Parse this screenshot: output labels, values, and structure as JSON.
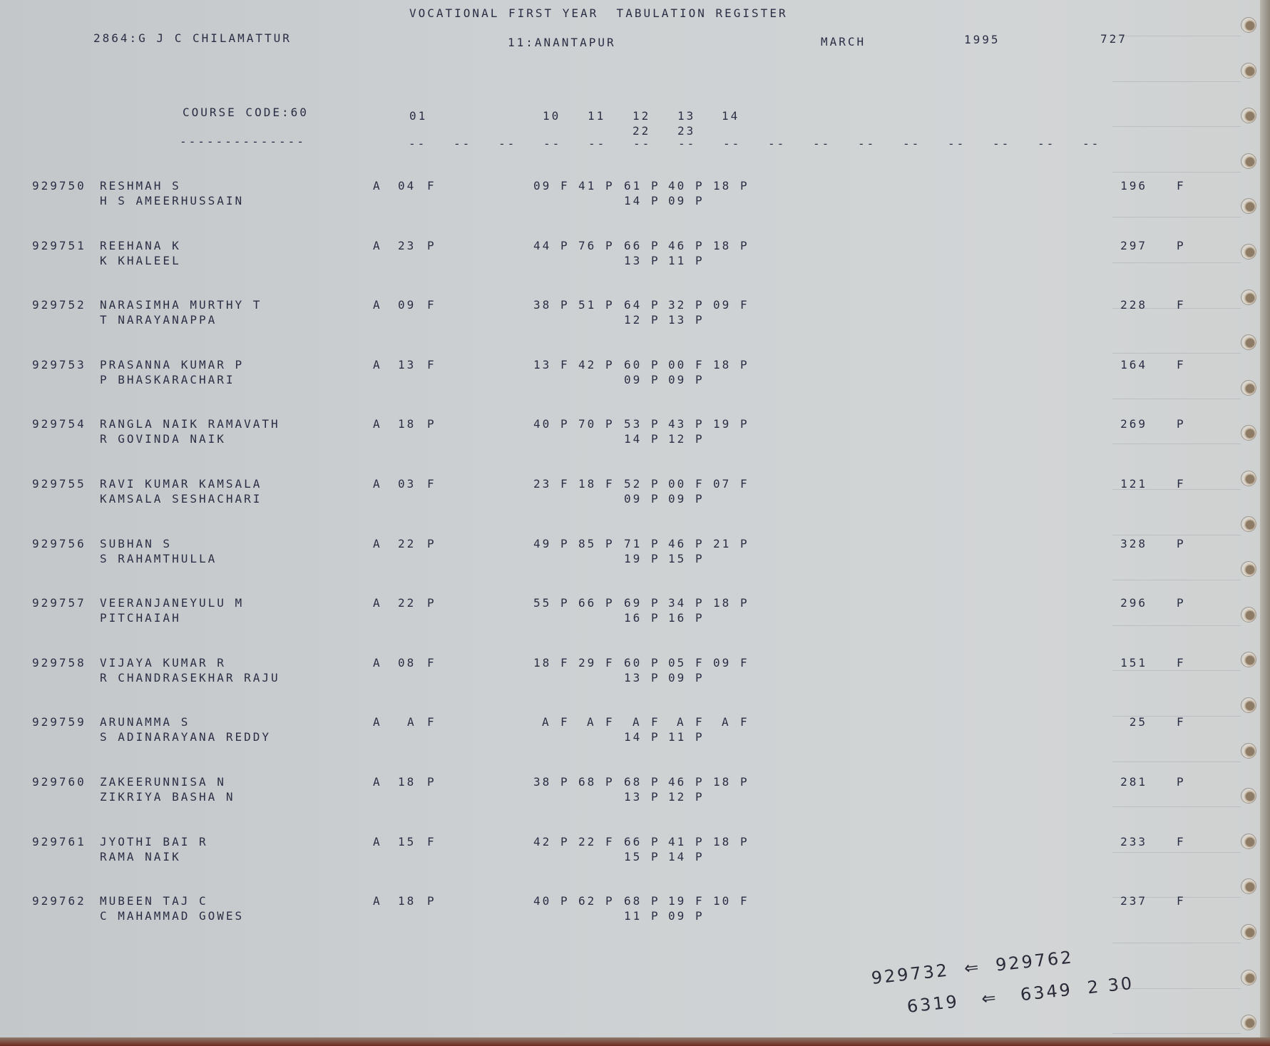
{
  "header": {
    "title": "VOCATIONAL FIRST YEAR  TABULATION REGISTER",
    "college": "2864:G J C CHILAMATTUR",
    "district": "11:ANANTAPUR",
    "month": "MARCH",
    "year": "1995",
    "page": "727"
  },
  "columns": {
    "course_code": "COURSE CODE:60",
    "underline": "--------------",
    "codes": [
      "01",
      "10",
      "11",
      "12",
      "13",
      "14"
    ],
    "codes_second_line": [
      "22",
      "23"
    ],
    "dash": "--"
  },
  "rows": [
    {
      "id": "929750",
      "name": "RESHMAH S",
      "guardian": "H S AMEERHUSSAIN",
      "part": "A",
      "s01": [
        "04",
        "F"
      ],
      "subjects": [
        [
          "09",
          "F"
        ],
        [
          "41",
          "P"
        ],
        [
          "61",
          "P"
        ],
        [
          "40",
          "P"
        ],
        [
          "18",
          "P"
        ]
      ],
      "sub2": [
        [
          "14",
          "P"
        ],
        [
          "09",
          "P"
        ]
      ],
      "total": "196",
      "result": "F"
    },
    {
      "id": "929751",
      "name": "REEHANA K",
      "guardian": "K KHALEEL",
      "part": "A",
      "s01": [
        "23",
        "P"
      ],
      "subjects": [
        [
          "44",
          "P"
        ],
        [
          "76",
          "P"
        ],
        [
          "66",
          "P"
        ],
        [
          "46",
          "P"
        ],
        [
          "18",
          "P"
        ]
      ],
      "sub2": [
        [
          "13",
          "P"
        ],
        [
          "11",
          "P"
        ]
      ],
      "total": "297",
      "result": "P"
    },
    {
      "id": "929752",
      "name": "NARASIMHA MURTHY T",
      "guardian": "T NARAYANAPPA",
      "part": "A",
      "s01": [
        "09",
        "F"
      ],
      "subjects": [
        [
          "38",
          "P"
        ],
        [
          "51",
          "P"
        ],
        [
          "64",
          "P"
        ],
        [
          "32",
          "P"
        ],
        [
          "09",
          "F"
        ]
      ],
      "sub2": [
        [
          "12",
          "P"
        ],
        [
          "13",
          "P"
        ]
      ],
      "total": "228",
      "result": "F"
    },
    {
      "id": "929753",
      "name": "PRASANNA KUMAR P",
      "guardian": "P BHASKARACHARI",
      "part": "A",
      "s01": [
        "13",
        "F"
      ],
      "subjects": [
        [
          "13",
          "F"
        ],
        [
          "42",
          "P"
        ],
        [
          "60",
          "P"
        ],
        [
          "00",
          "F"
        ],
        [
          "18",
          "P"
        ]
      ],
      "sub2": [
        [
          "09",
          "P"
        ],
        [
          "09",
          "P"
        ]
      ],
      "total": "164",
      "result": "F"
    },
    {
      "id": "929754",
      "name": "RANGLA NAIK RAMAVATH",
      "guardian": "R GOVINDA NAIK",
      "part": "A",
      "s01": [
        "18",
        "P"
      ],
      "subjects": [
        [
          "40",
          "P"
        ],
        [
          "70",
          "P"
        ],
        [
          "53",
          "P"
        ],
        [
          "43",
          "P"
        ],
        [
          "19",
          "P"
        ]
      ],
      "sub2": [
        [
          "14",
          "P"
        ],
        [
          "12",
          "P"
        ]
      ],
      "total": "269",
      "result": "P"
    },
    {
      "id": "929755",
      "name": "RAVI KUMAR KAMSALA",
      "guardian": "KAMSALA SESHACHARI",
      "part": "A",
      "s01": [
        "03",
        "F"
      ],
      "subjects": [
        [
          "23",
          "F"
        ],
        [
          "18",
          "F"
        ],
        [
          "52",
          "P"
        ],
        [
          "00",
          "F"
        ],
        [
          "07",
          "F"
        ]
      ],
      "sub2": [
        [
          "09",
          "P"
        ],
        [
          "09",
          "P"
        ]
      ],
      "total": "121",
      "result": "F"
    },
    {
      "id": "929756",
      "name": "SUBHAN S",
      "guardian": "S RAHAMTHULLA",
      "part": "A",
      "s01": [
        "22",
        "P"
      ],
      "subjects": [
        [
          "49",
          "P"
        ],
        [
          "85",
          "P"
        ],
        [
          "71",
          "P"
        ],
        [
          "46",
          "P"
        ],
        [
          "21",
          "P"
        ]
      ],
      "sub2": [
        [
          "19",
          "P"
        ],
        [
          "15",
          "P"
        ]
      ],
      "total": "328",
      "result": "P"
    },
    {
      "id": "929757",
      "name": "VEERANJANEYULU M",
      "guardian": "PITCHAIAH",
      "part": "A",
      "s01": [
        "22",
        "P"
      ],
      "subjects": [
        [
          "55",
          "P"
        ],
        [
          "66",
          "P"
        ],
        [
          "69",
          "P"
        ],
        [
          "34",
          "P"
        ],
        [
          "18",
          "P"
        ]
      ],
      "sub2": [
        [
          "16",
          "P"
        ],
        [
          "16",
          "P"
        ]
      ],
      "total": "296",
      "result": "P"
    },
    {
      "id": "929758",
      "name": "VIJAYA KUMAR R",
      "guardian": "R CHANDRASEKHAR RAJU",
      "part": "A",
      "s01": [
        "08",
        "F"
      ],
      "subjects": [
        [
          "18",
          "F"
        ],
        [
          "29",
          "F"
        ],
        [
          "60",
          "P"
        ],
        [
          "05",
          "F"
        ],
        [
          "09",
          "F"
        ]
      ],
      "sub2": [
        [
          "13",
          "P"
        ],
        [
          "09",
          "P"
        ]
      ],
      "total": "151",
      "result": "F"
    },
    {
      "id": "929759",
      "name": "ARUNAMMA S",
      "guardian": "S ADINARAYANA REDDY",
      "part": "A",
      "s01": [
        "A",
        "F"
      ],
      "subjects": [
        [
          "A",
          "F"
        ],
        [
          "A",
          "F"
        ],
        [
          "A",
          "F"
        ],
        [
          "A",
          "F"
        ],
        [
          "A",
          "F"
        ]
      ],
      "sub2": [
        [
          "14",
          "P"
        ],
        [
          "11",
          "P"
        ]
      ],
      "total": "25",
      "result": "F"
    },
    {
      "id": "929760",
      "name": "ZAKEERUNNISA N",
      "guardian": "ZIKRIYA BASHA N",
      "part": "A",
      "s01": [
        "18",
        "P"
      ],
      "subjects": [
        [
          "38",
          "P"
        ],
        [
          "68",
          "P"
        ],
        [
          "68",
          "P"
        ],
        [
          "46",
          "P"
        ],
        [
          "18",
          "P"
        ]
      ],
      "sub2": [
        [
          "13",
          "P"
        ],
        [
          "12",
          "P"
        ]
      ],
      "total": "281",
      "result": "P"
    },
    {
      "id": "929761",
      "name": "JYOTHI BAI R",
      "guardian": "RAMA NAIK",
      "part": "A",
      "s01": [
        "15",
        "F"
      ],
      "subjects": [
        [
          "42",
          "P"
        ],
        [
          "22",
          "F"
        ],
        [
          "66",
          "P"
        ],
        [
          "41",
          "P"
        ],
        [
          "18",
          "P"
        ]
      ],
      "sub2": [
        [
          "15",
          "P"
        ],
        [
          "14",
          "P"
        ]
      ],
      "total": "233",
      "result": "F"
    },
    {
      "id": "929762",
      "name": "MUBEEN TAJ C",
      "guardian": "C MAHAMMAD GOWES",
      "part": "A",
      "s01": [
        "18",
        "P"
      ],
      "subjects": [
        [
          "40",
          "P"
        ],
        [
          "62",
          "P"
        ],
        [
          "68",
          "P"
        ],
        [
          "19",
          "F"
        ],
        [
          "10",
          "F"
        ]
      ],
      "sub2": [
        [
          "11",
          "P"
        ],
        [
          "09",
          "P"
        ]
      ],
      "total": "237",
      "result": "F"
    }
  ],
  "handwritten_note": {
    "line1": "929732  ⇐  929762",
    "line2": "6319   ⇐   6349  2 30"
  }
}
